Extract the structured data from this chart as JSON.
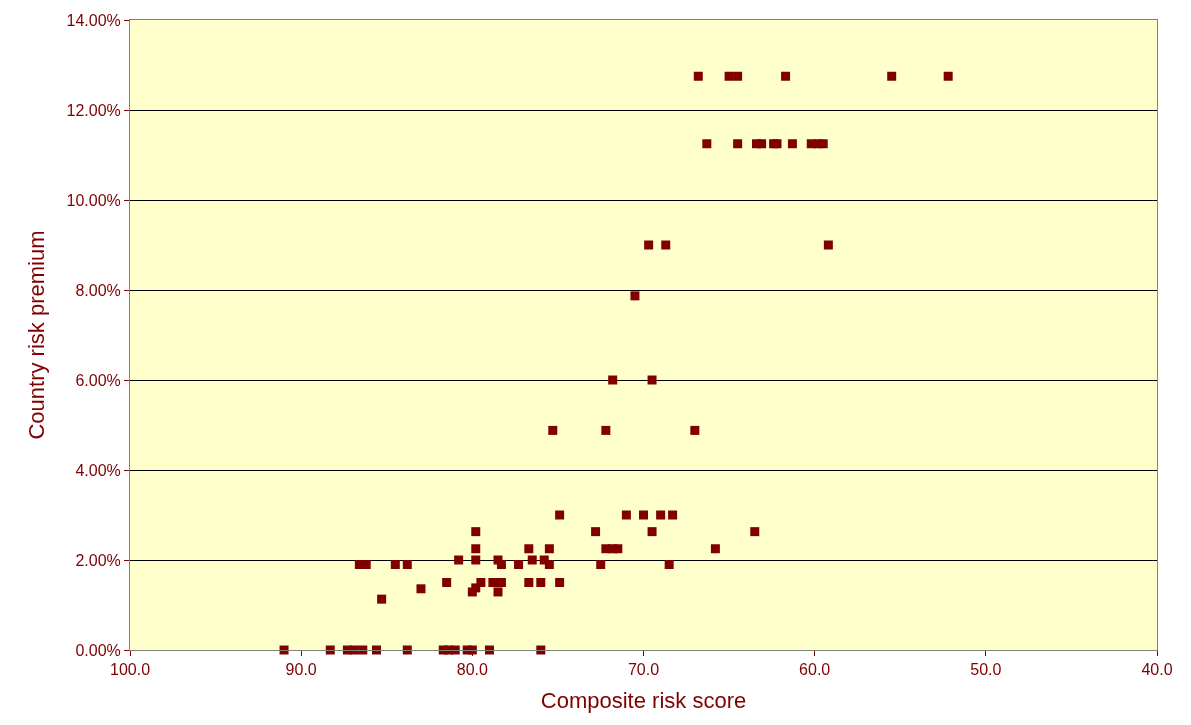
{
  "chart_data": {
    "type": "scatter",
    "xlabel": "Composite risk score",
    "ylabel": "Country risk premium",
    "marker": "square",
    "grid": "y",
    "xlim": [
      100,
      40
    ],
    "xticks": [
      {
        "value": 100,
        "label": "100.0"
      },
      {
        "value": 90,
        "label": "90.0"
      },
      {
        "value": 80,
        "label": "80.0"
      },
      {
        "value": 70,
        "label": "70.0"
      },
      {
        "value": 60,
        "label": "60.0"
      },
      {
        "value": 50,
        "label": "50.0"
      },
      {
        "value": 40,
        "label": "40.0"
      }
    ],
    "ylim": [
      0,
      14
    ],
    "yticks": [
      {
        "value": 0,
        "label": "0.00%"
      },
      {
        "value": 2,
        "label": "2.00%"
      },
      {
        "value": 4,
        "label": "4.00%"
      },
      {
        "value": 6,
        "label": "6.00%"
      },
      {
        "value": 8,
        "label": "8.00%"
      },
      {
        "value": 10,
        "label": "10.00%"
      },
      {
        "value": 12,
        "label": "12.00%"
      },
      {
        "value": 14,
        "label": "14.00%"
      }
    ],
    "series": [
      {
        "color": "#800000",
        "x": [
          91.0,
          88.3,
          87.3,
          86.9,
          86.4,
          85.6,
          83.8,
          81.7,
          81.4,
          81.0,
          80.3,
          80.0,
          79.0,
          76.0,
          85.3,
          83.0,
          79.8,
          80.0,
          78.5,
          81.5,
          79.5,
          78.8,
          78.3,
          76.7,
          76.0,
          74.9,
          86.6,
          86.2,
          84.5,
          83.8,
          78.3,
          77.3,
          75.5,
          72.5,
          68.5,
          80.8,
          79.8,
          78.5,
          76.5,
          75.8,
          79.8,
          76.7,
          75.5,
          72.2,
          71.8,
          71.5,
          65.8,
          79.8,
          72.8,
          69.5,
          63.5,
          74.9,
          71.0,
          70.0,
          69.0,
          68.3,
          75.3,
          72.2,
          67.0,
          71.8,
          69.5,
          70.5,
          69.7,
          68.7,
          59.2,
          66.3,
          64.5,
          63.4,
          63.1,
          62.4,
          62.2,
          61.3,
          60.2,
          59.8,
          59.5,
          66.8,
          65.0,
          64.5,
          61.7,
          55.5,
          52.2
        ],
        "values": [
          0,
          0,
          0,
          0,
          0,
          0,
          0,
          0,
          0,
          0,
          0,
          0,
          0,
          0,
          1.13,
          1.36,
          1.38,
          1.29,
          1.29,
          1.5,
          1.5,
          1.5,
          1.5,
          1.5,
          1.5,
          1.5,
          1.9,
          1.9,
          1.9,
          1.9,
          1.9,
          1.9,
          1.9,
          1.9,
          1.9,
          2.0,
          2.0,
          2.0,
          2.0,
          2.0,
          2.25,
          2.25,
          2.25,
          2.25,
          2.25,
          2.25,
          2.25,
          2.63,
          2.63,
          2.63,
          2.63,
          3.0,
          3.0,
          3.0,
          3.0,
          3.0,
          4.88,
          4.88,
          4.88,
          6.0,
          6.0,
          7.87,
          9.0,
          9.0,
          9.0,
          11.25,
          11.25,
          11.25,
          11.25,
          11.25,
          11.25,
          11.25,
          11.25,
          11.25,
          11.25,
          12.75,
          12.75,
          12.75,
          12.75,
          12.75,
          12.75
        ]
      }
    ]
  }
}
